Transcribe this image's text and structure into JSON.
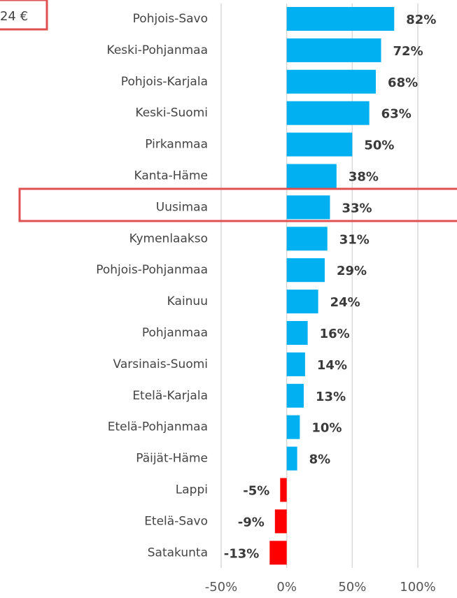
{
  "chart_data": {
    "type": "hbar",
    "annotation": "24 €",
    "categories": [
      "Pohjois-Savo",
      "Keski-Pohjanmaa",
      "Pohjois-Karjala",
      "Keski-Suomi",
      "Pirkanmaa",
      "Kanta-Häme",
      "Uusimaa",
      "Kymenlaakso",
      "Pohjois-Pohjanmaa",
      "Kainuu",
      "Pohjanmaa",
      "Varsinais-Suomi",
      "Etelä-Karjala",
      "Etelä-Pohjanmaa",
      "Päijät-Häme",
      "Lappi",
      "Etelä-Savo",
      "Satakunta"
    ],
    "values": [
      82,
      72,
      68,
      63,
      50,
      38,
      33,
      31,
      29,
      24,
      16,
      14,
      13,
      10,
      8,
      -5,
      -9,
      -13
    ],
    "value_labels": [
      "82%",
      "72%",
      "68%",
      "63%",
      "50%",
      "38%",
      "33%",
      "31%",
      "29%",
      "24%",
      "16%",
      "14%",
      "13%",
      "10%",
      "8%",
      "-5%",
      "-9%",
      "-13%"
    ],
    "color": "#00b0f0",
    "negative_color": "#ff0000",
    "xlim": [
      -50,
      100
    ],
    "xticks": [
      {
        "value": -50,
        "label": "-50%"
      },
      {
        "value": 0,
        "label": "0%"
      },
      {
        "value": 50,
        "label": "50%"
      },
      {
        "value": 100,
        "label": "100%"
      }
    ],
    "grid": true
  }
}
